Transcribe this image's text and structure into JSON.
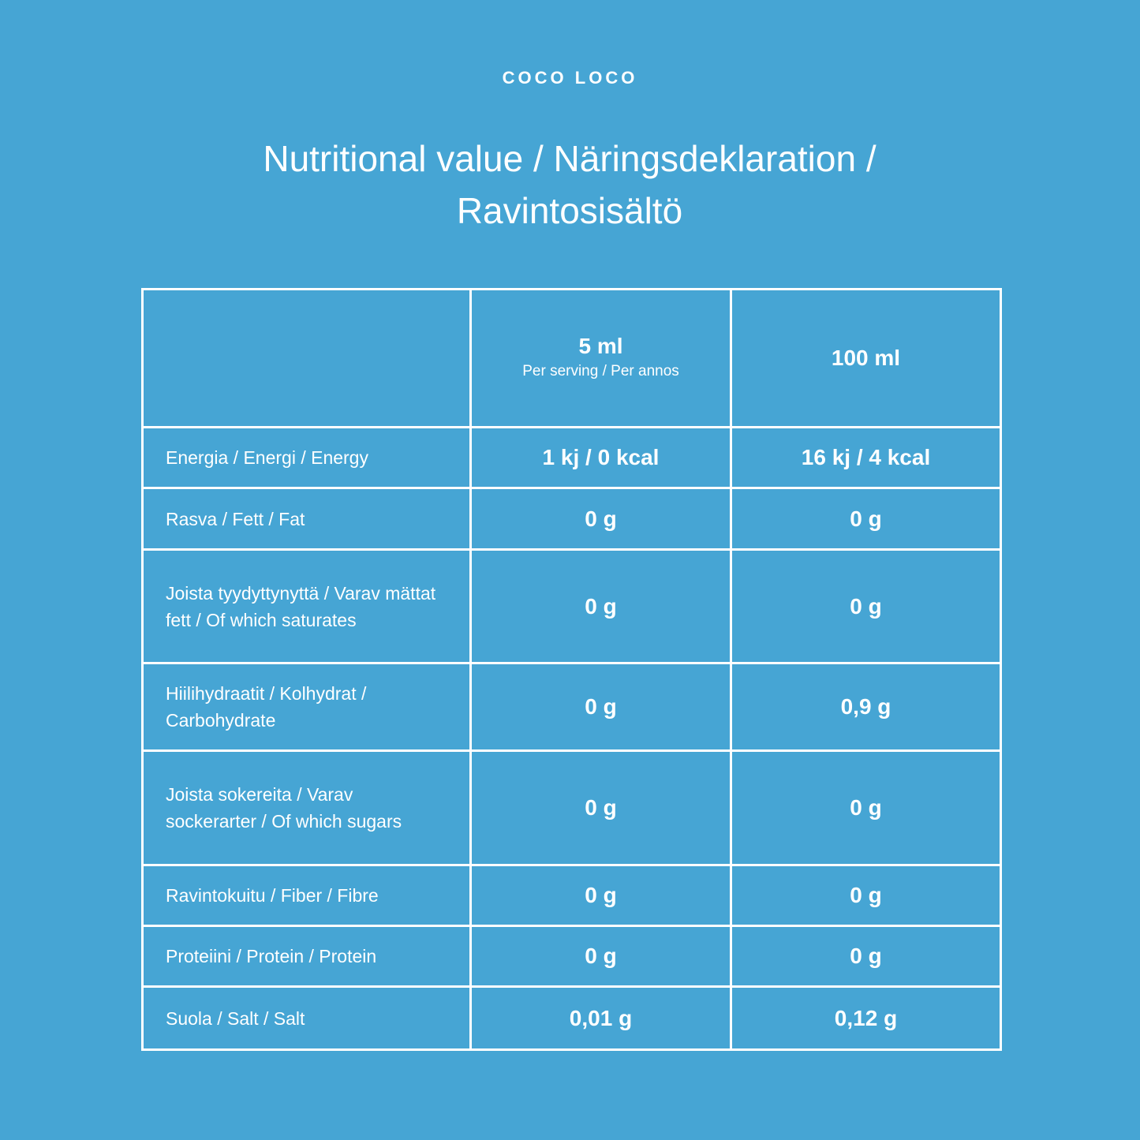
{
  "header": {
    "brand": "COCO LOCO",
    "title": "Nutritional value / Näringsdeklaration / Ravintosisältö"
  },
  "table": {
    "columns": [
      {
        "amount": "5 ml",
        "note": "Per serving / Per annos"
      },
      {
        "amount": "100 ml"
      }
    ],
    "rows": [
      [
        "Energia / Energi / Energy",
        "1 kj / 0 kcal",
        "16 kj / 4 kcal"
      ],
      [
        "Rasva / Fett / Fat",
        "0 g",
        "0 g"
      ],
      [
        "Joista tyydyttynyttä / Varav mättat fett / Of which saturates",
        "0 g",
        "0 g"
      ],
      [
        "Hiilihydraatit / Kolhydrat / Carbohydrate",
        "0 g",
        "0,9 g"
      ],
      [
        "Joista sokereita / Varav sockerarter / Of which sugars",
        "0 g",
        "0 g"
      ],
      [
        "Ravintokuitu / Fiber / Fibre",
        "0 g",
        "0 g"
      ],
      [
        "Proteiini / Protein / Protein",
        "0 g",
        "0 g"
      ],
      [
        "Suola / Salt / Salt",
        "0,01 g",
        "0,12 g"
      ]
    ]
  }
}
